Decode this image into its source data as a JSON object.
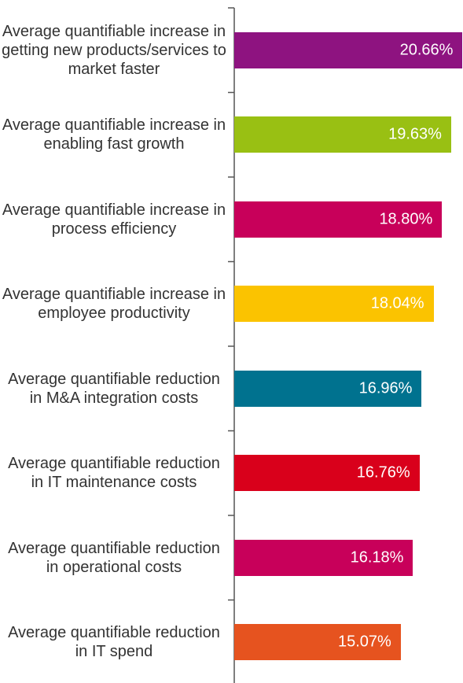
{
  "chart_data": {
    "type": "bar",
    "orientation": "horizontal",
    "categories": [
      "Average quantifiable increase in getting new products/services to market faster",
      "Average quantifiable increase in enabling fast growth",
      "Average quantifiable increase in process efficiency",
      "Average quantifiable increase in employee productivity",
      "Average quantifiable reduction in M&A integration costs",
      "Average quantifiable reduction in IT maintenance costs",
      "Average quantifiable reduction in operational costs",
      "Average quantifiable reduction in IT spend"
    ],
    "values": [
      20.66,
      19.63,
      18.8,
      18.04,
      16.96,
      16.76,
      16.18,
      15.07
    ],
    "value_labels": [
      "20.66%",
      "19.63%",
      "18.80%",
      "18.04%",
      "16.96%",
      "16.76%",
      "16.18%",
      "15.07%"
    ],
    "colors": [
      "#8e1380",
      "#99c013",
      "#c8005a",
      "#fbc300",
      "#00728f",
      "#d9001b",
      "#c8005a",
      "#e6531f"
    ],
    "xlim": [
      0,
      20.7
    ]
  }
}
